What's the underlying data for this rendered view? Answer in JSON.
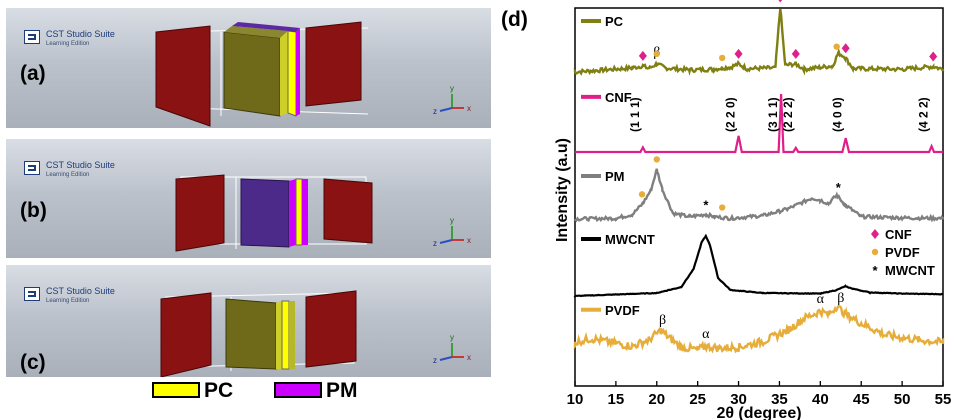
{
  "left": {
    "brand": {
      "title": "CST Studio Suite",
      "subtitle": "Learning Edition"
    },
    "panels": [
      {
        "label": "(a)"
      },
      {
        "label": "(b)"
      },
      {
        "label": "(c)"
      }
    ],
    "axis_triad": {
      "x": "x",
      "y": "y",
      "z": "z"
    },
    "legend": [
      {
        "label": "PC",
        "color": "#ffff00"
      },
      {
        "label": "PM",
        "color": "#cc00ff"
      }
    ]
  },
  "chart_data": {
    "type": "line",
    "panel_label": "(d)",
    "xlabel": "2θ (degree)",
    "ylabel": "Intensity (a.u)",
    "xlim": [
      10,
      55
    ],
    "xticks": [
      10,
      15,
      20,
      25,
      30,
      35,
      40,
      45,
      50,
      55
    ],
    "series": [
      {
        "name": "PC",
        "color": "#7f7f12",
        "points": [
          [
            10,
            0.0
          ],
          [
            17,
            0.06
          ],
          [
            18.3,
            0.09
          ],
          [
            19,
            0.05
          ],
          [
            20,
            0.12
          ],
          [
            21,
            0.06
          ],
          [
            24,
            0.03
          ],
          [
            27,
            0.04
          ],
          [
            28,
            0.06
          ],
          [
            29,
            0.07
          ],
          [
            30,
            0.12
          ],
          [
            31,
            0.05
          ],
          [
            34.5,
            0.06
          ],
          [
            35.1,
            0.95
          ],
          [
            35.7,
            0.1
          ],
          [
            37,
            0.12
          ],
          [
            38,
            0.04
          ],
          [
            41.5,
            0.09
          ],
          [
            42.2,
            0.28
          ],
          [
            43,
            0.22
          ],
          [
            44,
            0.05
          ],
          [
            50,
            0.04
          ],
          [
            53.8,
            0.08
          ],
          [
            55,
            0.04
          ]
        ]
      },
      {
        "name": "CNF",
        "color": "#e0208a",
        "points": [
          [
            10,
            0.0
          ],
          [
            18,
            0.0
          ],
          [
            18.3,
            0.08
          ],
          [
            18.6,
            0.0
          ],
          [
            29.6,
            0.0
          ],
          [
            30,
            0.28
          ],
          [
            30.4,
            0.0
          ],
          [
            34.9,
            0.0
          ],
          [
            35.2,
            1.0
          ],
          [
            35.5,
            0.0
          ],
          [
            36.7,
            0.0
          ],
          [
            37,
            0.07
          ],
          [
            37.3,
            0.0
          ],
          [
            42.7,
            0.0
          ],
          [
            43.1,
            0.24
          ],
          [
            43.5,
            0.0
          ],
          [
            53.3,
            0.0
          ],
          [
            53.6,
            0.1
          ],
          [
            53.9,
            0.0
          ],
          [
            55,
            0.0
          ]
        ]
      },
      {
        "name": "PM",
        "color": "#7f7f7f",
        "points": [
          [
            10,
            0.02
          ],
          [
            15,
            0.03
          ],
          [
            17,
            0.1
          ],
          [
            18.3,
            0.3
          ],
          [
            19.3,
            0.55
          ],
          [
            20,
            0.92
          ],
          [
            20.7,
            0.55
          ],
          [
            22,
            0.12
          ],
          [
            24,
            0.06
          ],
          [
            26,
            0.1
          ],
          [
            27,
            0.06
          ],
          [
            29,
            0.03
          ],
          [
            33,
            0.08
          ],
          [
            36,
            0.2
          ],
          [
            39,
            0.4
          ],
          [
            40,
            0.36
          ],
          [
            41,
            0.3
          ],
          [
            42,
            0.45
          ],
          [
            43,
            0.28
          ],
          [
            45,
            0.06
          ],
          [
            50,
            0.04
          ],
          [
            55,
            0.03
          ]
        ]
      },
      {
        "name": "MWCNT",
        "color": "#000000",
        "points": [
          [
            10,
            0.0
          ],
          [
            20,
            0.05
          ],
          [
            23,
            0.15
          ],
          [
            24.5,
            0.45
          ],
          [
            25.5,
            0.9
          ],
          [
            26,
            1.0
          ],
          [
            26.5,
            0.85
          ],
          [
            27.5,
            0.3
          ],
          [
            29,
            0.1
          ],
          [
            33,
            0.05
          ],
          [
            40,
            0.04
          ],
          [
            42,
            0.1
          ],
          [
            43,
            0.16
          ],
          [
            44,
            0.12
          ],
          [
            46,
            0.06
          ],
          [
            50,
            0.04
          ],
          [
            55,
            0.03
          ]
        ]
      },
      {
        "name": "PVDF",
        "color": "#e6ad3a",
        "points": [
          [
            10,
            0.2
          ],
          [
            12,
            0.28
          ],
          [
            15,
            0.18
          ],
          [
            17,
            0.12
          ],
          [
            19,
            0.25
          ],
          [
            20.5,
            0.45
          ],
          [
            21.5,
            0.3
          ],
          [
            23,
            0.1
          ],
          [
            25,
            0.05
          ],
          [
            26,
            0.12
          ],
          [
            27.5,
            0.08
          ],
          [
            30,
            0.1
          ],
          [
            33,
            0.22
          ],
          [
            36,
            0.45
          ],
          [
            38,
            0.7
          ],
          [
            40,
            0.85
          ],
          [
            41,
            0.78
          ],
          [
            42,
            0.95
          ],
          [
            43,
            0.8
          ],
          [
            45,
            0.6
          ],
          [
            48,
            0.35
          ],
          [
            52,
            0.25
          ],
          [
            55,
            0.2
          ]
        ]
      }
    ],
    "hkl_labels": [
      {
        "text": "(1 1 1)",
        "x": 18.3
      },
      {
        "text": "(2 2 0)",
        "x": 30.0
      },
      {
        "text": "(3 1 1)",
        "x": 35.2
      },
      {
        "text": "(2 2 2)",
        "x": 37.0
      },
      {
        "text": "(4 0 0)",
        "x": 43.1
      },
      {
        "text": "(4 2 2)",
        "x": 53.6
      }
    ],
    "greek_labels": [
      {
        "text": "β",
        "series": "PC",
        "x": 20.0
      },
      {
        "text": "β",
        "series": "PVDF",
        "x": 20.7
      },
      {
        "text": "α",
        "series": "PVDF",
        "x": 26.0
      },
      {
        "text": "α",
        "series": "PVDF",
        "x": 40.0
      },
      {
        "text": "β",
        "series": "PVDF",
        "x": 42.5
      }
    ],
    "peak_markers": [
      {
        "symbol": "CNF",
        "series": "PC",
        "x": 18.3
      },
      {
        "symbol": "PVDF",
        "series": "PC",
        "x": 20.0
      },
      {
        "symbol": "PVDF",
        "series": "PC",
        "x": 28.0
      },
      {
        "symbol": "CNF",
        "series": "PC",
        "x": 30.0
      },
      {
        "symbol": "CNF",
        "series": "PC",
        "x": 35.1
      },
      {
        "symbol": "CNF",
        "series": "PC",
        "x": 37.0
      },
      {
        "symbol": "PVDF",
        "series": "PC",
        "x": 42.0
      },
      {
        "symbol": "CNF",
        "series": "PC",
        "x": 43.1
      },
      {
        "symbol": "CNF",
        "series": "PC",
        "x": 53.8
      },
      {
        "symbol": "PVDF",
        "series": "PM",
        "x": 18.2
      },
      {
        "symbol": "PVDF",
        "series": "PM",
        "x": 20.0
      },
      {
        "symbol": "MWCNT",
        "series": "PM",
        "x": 26.0
      },
      {
        "symbol": "PVDF",
        "series": "PM",
        "x": 28.0
      },
      {
        "symbol": "MWCNT",
        "series": "PM",
        "x": 42.2
      }
    ],
    "marker_legend": [
      {
        "symbol": "CNF",
        "label": "CNF",
        "color": "#e0208a"
      },
      {
        "symbol": "PVDF",
        "label": "PVDF",
        "color": "#e6ad3a"
      },
      {
        "symbol": "MWCNT",
        "label": "MWCNT",
        "color": "#000000"
      }
    ]
  }
}
